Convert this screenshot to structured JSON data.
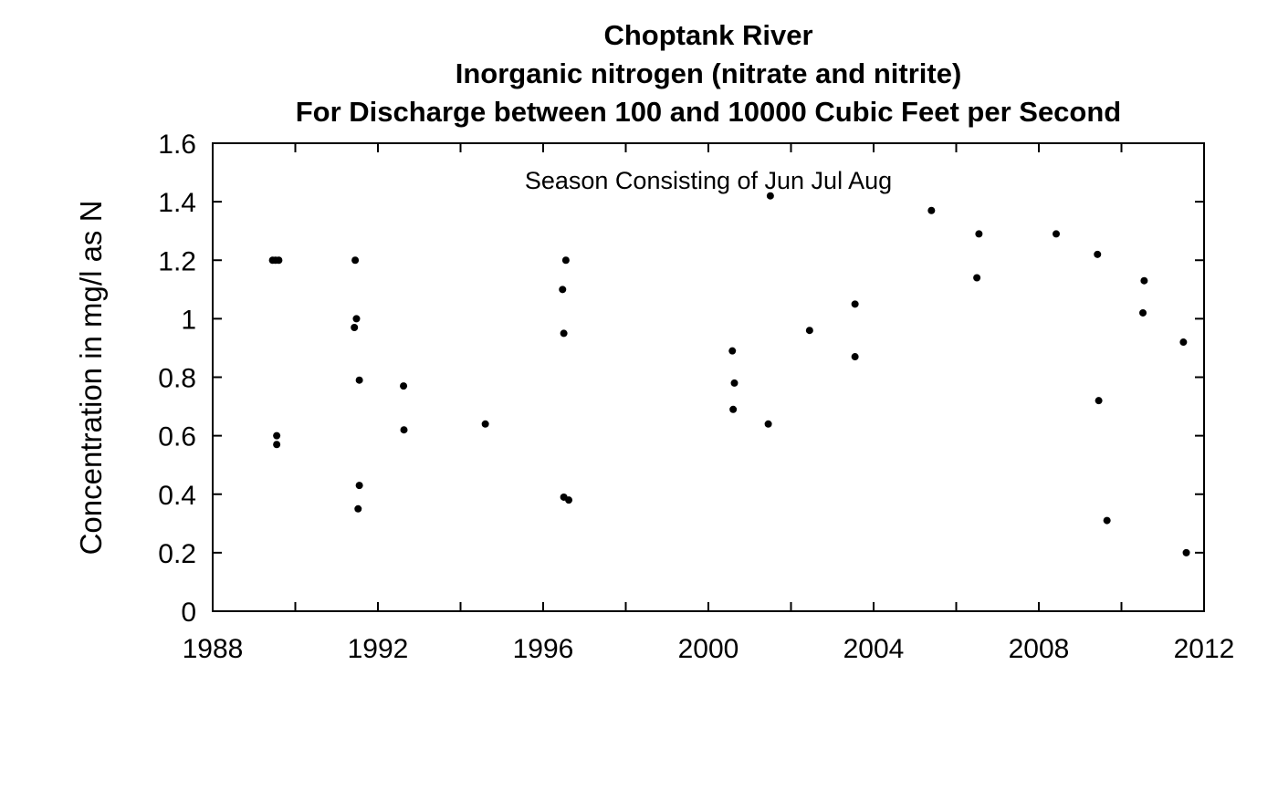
{
  "chart_data": {
    "type": "scatter",
    "title_lines": [
      "Choptank River",
      "Inorganic nitrogen (nitrate and nitrite)",
      "For Discharge between 100 and 10000 Cubic Feet per Second"
    ],
    "annotation": "Season Consisting of Jun Jul Aug",
    "xlabel": "",
    "ylabel": "Concentration in mg/l as N",
    "xlim": [
      1988,
      2012
    ],
    "ylim": [
      0,
      1.6
    ],
    "x_ticks": [
      1988,
      1990,
      1992,
      1994,
      1996,
      1998,
      2000,
      2002,
      2004,
      2006,
      2008,
      2010,
      2012
    ],
    "x_tick_labels": [
      "1988",
      "1992",
      "1996",
      "2000",
      "2004",
      "2008",
      "2012"
    ],
    "x_tick_label_values": [
      1988,
      1992,
      1996,
      2000,
      2004,
      2008,
      2012
    ],
    "y_ticks": [
      0,
      0.2,
      0.4,
      0.6,
      0.8,
      1,
      1.2,
      1.4,
      1.6
    ],
    "y_tick_labels": [
      "0",
      "0.2",
      "0.4",
      "0.6",
      "0.8",
      "1",
      "1.2",
      "1.4",
      "1.6"
    ],
    "grid": false,
    "marker_color": "#000000",
    "points": [
      {
        "x": 1989.45,
        "y": 1.2
      },
      {
        "x": 1989.52,
        "y": 1.2
      },
      {
        "x": 1989.6,
        "y": 1.2
      },
      {
        "x": 1989.55,
        "y": 0.6
      },
      {
        "x": 1989.55,
        "y": 0.57
      },
      {
        "x": 1991.45,
        "y": 1.2
      },
      {
        "x": 1991.48,
        "y": 1.0
      },
      {
        "x": 1991.43,
        "y": 0.97
      },
      {
        "x": 1991.55,
        "y": 0.79
      },
      {
        "x": 1991.55,
        "y": 0.43
      },
      {
        "x": 1991.52,
        "y": 0.35
      },
      {
        "x": 1992.62,
        "y": 0.77
      },
      {
        "x": 1992.63,
        "y": 0.62
      },
      {
        "x": 1994.6,
        "y": 0.64
      },
      {
        "x": 1996.55,
        "y": 1.2
      },
      {
        "x": 1996.47,
        "y": 1.1
      },
      {
        "x": 1996.5,
        "y": 0.95
      },
      {
        "x": 1996.5,
        "y": 0.39
      },
      {
        "x": 1996.62,
        "y": 0.38
      },
      {
        "x": 2000.58,
        "y": 0.89
      },
      {
        "x": 2000.63,
        "y": 0.78
      },
      {
        "x": 2000.6,
        "y": 0.69
      },
      {
        "x": 2001.5,
        "y": 1.42
      },
      {
        "x": 2001.45,
        "y": 0.64
      },
      {
        "x": 2002.45,
        "y": 0.96
      },
      {
        "x": 2003.55,
        "y": 1.05
      },
      {
        "x": 2003.55,
        "y": 0.87
      },
      {
        "x": 2005.4,
        "y": 1.37
      },
      {
        "x": 2006.55,
        "y": 1.29
      },
      {
        "x": 2006.5,
        "y": 1.14
      },
      {
        "x": 2008.42,
        "y": 1.29
      },
      {
        "x": 2009.42,
        "y": 1.22
      },
      {
        "x": 2009.45,
        "y": 0.72
      },
      {
        "x": 2009.65,
        "y": 0.31
      },
      {
        "x": 2010.55,
        "y": 1.13
      },
      {
        "x": 2010.52,
        "y": 1.02
      },
      {
        "x": 2011.5,
        "y": 0.92
      },
      {
        "x": 2011.57,
        "y": 0.2
      }
    ]
  }
}
